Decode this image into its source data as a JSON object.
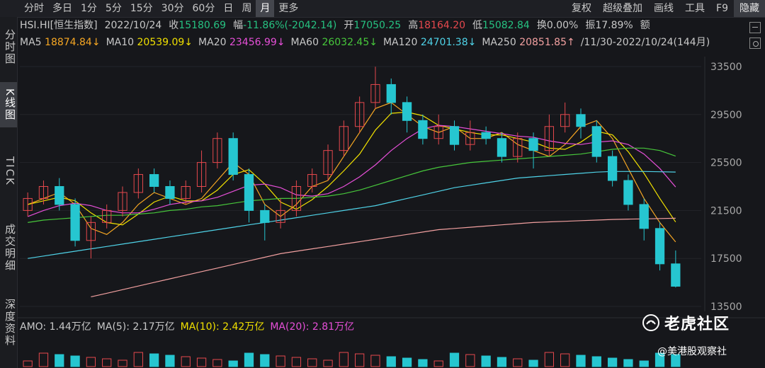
{
  "toolbar": {
    "periods": [
      "分时",
      "多日",
      "1分",
      "5分",
      "15分",
      "30分",
      "60分",
      "日",
      "周",
      "月",
      "更多"
    ],
    "active": "月",
    "right": [
      "复权",
      "超级叠加",
      "画线",
      "工具",
      "F9",
      "隐藏"
    ]
  },
  "sidebar": {
    "tabs": [
      "分时图",
      "K线图",
      "TICK",
      "成交明细",
      "深度资料"
    ],
    "active": "K线图"
  },
  "quote": {
    "symbol": "HSI.HI[恒生指数]",
    "date": "2022/10/24",
    "close_label": "收",
    "close": "15180.69",
    "change_label": "幅",
    "change": "-11.86%(-2042.14)",
    "open_label": "开",
    "open": "17050.25",
    "high_label": "高",
    "high": "18164.20",
    "low_label": "低",
    "low": "15082.84",
    "turnover_label": "换",
    "turnover": "0.00%",
    "amplitude_label": "振",
    "amplitude": "17.89%",
    "amount_label": "额"
  },
  "ma_line": {
    "ma5": "MA5",
    "ma5_val": "18874.84↓",
    "ma10": "MA10",
    "ma10_val": "20539.09↓",
    "ma20": "MA20",
    "ma20_val": "23456.99↓",
    "ma60": "MA60",
    "ma60_val": "26032.45↓",
    "ma120": "MA120",
    "ma120_val": "24701.38↓",
    "ma250": "MA250",
    "ma250_val": "20851.85↑",
    "range": "/11/30-2022/10/24(144月)"
  },
  "colors": {
    "up": "#e5484d",
    "down": "#26c6d0",
    "ma5": "#f5a623",
    "ma10": "#f0e000",
    "ma20": "#e64fd8",
    "ma60": "#47c73b",
    "ma120": "#4fd3e8",
    "ma250": "#f2a0a0"
  },
  "volume": {
    "amo": "AMO: 1.44万亿",
    "ma5": "MA(5): 2.17万亿",
    "ma10": "MA(10): 2.42万亿",
    "ma20": "MA(20): 2.81万亿"
  },
  "logo": {
    "text": "老虎社区",
    "icon": "tiger-icon"
  },
  "watermark": "@美港股观察社",
  "chart_data": {
    "type": "candlestick",
    "title": "",
    "ylim": [
      13500,
      33500
    ],
    "yticks": [
      "33500",
      "29500",
      "25500",
      "21500",
      "17500",
      "13500"
    ],
    "annotations": {
      "max": "33484.08",
      "min": "15082.84"
    },
    "series": [
      {
        "name": "MA5",
        "values": [
          22000,
          22500,
          23000,
          22000,
          20000,
          19500,
          20500,
          22000,
          23000,
          22500,
          22000,
          22500,
          24000,
          25500,
          24500,
          22000,
          21000,
          22000,
          23500,
          24000,
          26000,
          28000,
          30000,
          30500,
          29500,
          28500,
          28000,
          28500,
          27500,
          27500,
          28000,
          27000,
          26500,
          26000,
          27000,
          28500,
          29000,
          27500,
          25000,
          22500,
          20500,
          18874
        ]
      },
      {
        "name": "MA10",
        "values": [
          22000,
          22300,
          22600,
          22300,
          21300,
          20500,
          20300,
          21200,
          22200,
          22700,
          22300,
          22300,
          23200,
          24500,
          24900,
          23700,
          22200,
          21600,
          22400,
          23500,
          24800,
          26200,
          28200,
          29600,
          29700,
          29400,
          28600,
          28300,
          28000,
          27800,
          27800,
          27500,
          27200,
          26700,
          26600,
          27200,
          28100,
          27800,
          26400,
          24600,
          22500,
          20539
        ]
      },
      {
        "name": "MA20",
        "values": [
          21000,
          21500,
          21900,
          22100,
          21900,
          21500,
          21300,
          21300,
          21600,
          22000,
          22200,
          22300,
          22600,
          23100,
          23600,
          23700,
          23400,
          22800,
          22700,
          22900,
          23500,
          24300,
          25300,
          26500,
          27500,
          28300,
          28600,
          28500,
          28300,
          28100,
          27900,
          27700,
          27600,
          27300,
          27100,
          27000,
          27200,
          27300,
          27000,
          26200,
          25000,
          23456
        ]
      },
      {
        "name": "MA60",
        "values": [
          20500,
          20700,
          20800,
          20900,
          21000,
          21100,
          21100,
          21200,
          21300,
          21500,
          21600,
          21800,
          21900,
          22100,
          22300,
          22400,
          22500,
          22500,
          22600,
          22700,
          22900,
          23200,
          23600,
          24000,
          24400,
          24800,
          25100,
          25300,
          25500,
          25600,
          25700,
          25800,
          25900,
          26000,
          26100,
          26200,
          26400,
          26600,
          26700,
          26700,
          26500,
          26032
        ]
      },
      {
        "name": "MA120",
        "values": [
          17500,
          17700,
          17900,
          18100,
          18300,
          18500,
          18700,
          18900,
          19100,
          19300,
          19500,
          19700,
          19900,
          20100,
          20300,
          20500,
          20700,
          20900,
          21100,
          21300,
          21500,
          21700,
          21900,
          22200,
          22500,
          22800,
          23100,
          23400,
          23600,
          23800,
          24000,
          24200,
          24300,
          24400,
          24500,
          24600,
          24700,
          24750,
          24750,
          24750,
          24730,
          24701
        ]
      },
      {
        "name": "MA250",
        "values": [
          null,
          null,
          null,
          null,
          14300,
          14600,
          14900,
          15200,
          15500,
          15800,
          16100,
          16400,
          16700,
          17000,
          17300,
          17600,
          17900,
          18100,
          18300,
          18500,
          18700,
          18900,
          19100,
          19300,
          19500,
          19700,
          19900,
          20000,
          20100,
          20200,
          20300,
          20400,
          20500,
          20550,
          20600,
          20650,
          20700,
          20750,
          20780,
          20800,
          20830,
          20851
        ]
      }
    ],
    "candles": [
      [
        21500,
        22500,
        21000,
        23000
      ],
      [
        22500,
        23500,
        22000,
        24000
      ],
      [
        23500,
        22000,
        21500,
        24200
      ],
      [
        22000,
        19000,
        18500,
        22500
      ],
      [
        19000,
        20500,
        17500,
        21000
      ],
      [
        20500,
        21500,
        20000,
        22000
      ],
      [
        21500,
        23000,
        21000,
        23500
      ],
      [
        23000,
        24500,
        22500,
        25000
      ],
      [
        24500,
        23500,
        23000,
        25000
      ],
      [
        23500,
        22500,
        22000,
        24000
      ],
      [
        22500,
        23500,
        22000,
        24000
      ],
      [
        23500,
        25500,
        23000,
        26500
      ],
      [
        25500,
        27500,
        25000,
        28000
      ],
      [
        27500,
        24500,
        24000,
        28000
      ],
      [
        24500,
        21500,
        20500,
        25000
      ],
      [
        21500,
        20500,
        19000,
        22000
      ],
      [
        20500,
        21500,
        20000,
        22500
      ],
      [
        21500,
        23500,
        21000,
        24000
      ],
      [
        23500,
        24500,
        23000,
        25000
      ],
      [
        24500,
        26500,
        24000,
        27000
      ],
      [
        26500,
        28500,
        26000,
        29000
      ],
      [
        28500,
        30500,
        28000,
        31000
      ],
      [
        30500,
        32000,
        30000,
        33484
      ],
      [
        32000,
        30500,
        29500,
        32500
      ],
      [
        30500,
        29000,
        28000,
        31000
      ],
      [
        29000,
        27500,
        27000,
        29500
      ],
      [
        27500,
        28500,
        27000,
        29500
      ],
      [
        28500,
        27000,
        26500,
        29000
      ],
      [
        27000,
        28000,
        26500,
        29000
      ],
      [
        28000,
        27500,
        27000,
        28500
      ],
      [
        27500,
        26000,
        25500,
        28000
      ],
      [
        26000,
        27500,
        25500,
        28000
      ],
      [
        27500,
        26500,
        25000,
        28000
      ],
      [
        26500,
        28500,
        26000,
        29500
      ],
      [
        28500,
        29500,
        28000,
        30500
      ],
      [
        29500,
        28500,
        27500,
        30000
      ],
      [
        28500,
        26000,
        25500,
        29000
      ],
      [
        26000,
        24000,
        23500,
        26500
      ],
      [
        24000,
        22000,
        21500,
        24500
      ],
      [
        22000,
        20000,
        19000,
        22500
      ],
      [
        20000,
        17050,
        16500,
        20500
      ],
      [
        17050,
        15180,
        15082,
        18164
      ]
    ]
  }
}
